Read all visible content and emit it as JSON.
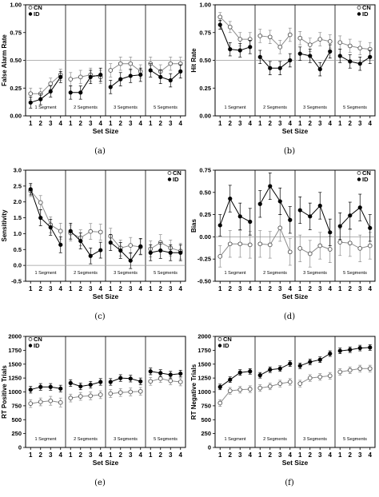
{
  "panels": [
    {
      "caption": "(a)",
      "chart_data": {
        "type": "line",
        "ylabel": "False Alarm Rate",
        "xlabel": "Set Size",
        "ylim": [
          0,
          1.0
        ],
        "yticks": [
          "0.00",
          "0.25",
          "0.50",
          "0.75",
          "1.00"
        ],
        "ytick_values": [
          0,
          0.25,
          0.5,
          0.75,
          1.0
        ],
        "ref_line": 0.5,
        "categories": [
          "1",
          "2",
          "3",
          "4",
          "1",
          "2",
          "3",
          "4",
          "1",
          "2",
          "3",
          "4",
          "1",
          "2",
          "3",
          "4"
        ],
        "segments": [
          "1 Segment",
          "2 Segments",
          "3 Segments",
          "5 Segments"
        ],
        "legend": [
          "CN",
          "ID"
        ],
        "legend_position": "top-left",
        "series": [
          {
            "name": "CN",
            "values": [
              0.2,
              0.2,
              0.29,
              0.37,
              0.33,
              0.35,
              0.37,
              0.35,
              0.41,
              0.47,
              0.47,
              0.4,
              0.47,
              0.4,
              0.47,
              0.47
            ],
            "err": [
              0.05,
              0.05,
              0.05,
              0.05,
              0.06,
              0.06,
              0.06,
              0.06,
              0.06,
              0.06,
              0.06,
              0.06,
              0.06,
              0.06,
              0.06,
              0.06
            ]
          },
          {
            "name": "ID",
            "values": [
              0.12,
              0.15,
              0.22,
              0.35,
              0.21,
              0.21,
              0.35,
              0.37,
              0.26,
              0.33,
              0.36,
              0.37,
              0.41,
              0.35,
              0.32,
              0.4
            ],
            "err": [
              0.05,
              0.05,
              0.05,
              0.05,
              0.06,
              0.06,
              0.06,
              0.06,
              0.06,
              0.06,
              0.06,
              0.06,
              0.06,
              0.06,
              0.06,
              0.06
            ]
          }
        ]
      }
    },
    {
      "caption": "(b)",
      "chart_data": {
        "type": "line",
        "ylabel": "Hit Rate",
        "xlabel": "Set Size",
        "ylim": [
          0,
          1.0
        ],
        "yticks": [
          "0.00",
          "0.25",
          "0.50",
          "0.75",
          "1.00"
        ],
        "ytick_values": [
          0,
          0.25,
          0.5,
          0.75,
          1.0
        ],
        "ref_line": 0.5,
        "categories": [
          "1",
          "2",
          "3",
          "4",
          "1",
          "2",
          "3",
          "4",
          "1",
          "2",
          "3",
          "4",
          "1",
          "2",
          "3",
          "4"
        ],
        "segments": [
          "1 Segment",
          "2 Segments",
          "3 Segments",
          "5 Segments"
        ],
        "legend": [
          "CN",
          "ID"
        ],
        "legend_position": "top-right",
        "series": [
          {
            "name": "CN",
            "values": [
              0.89,
              0.8,
              0.69,
              0.69,
              0.72,
              0.71,
              0.62,
              0.73,
              0.7,
              0.64,
              0.69,
              0.67,
              0.66,
              0.63,
              0.61,
              0.6
            ],
            "err": [
              0.04,
              0.05,
              0.06,
              0.06,
              0.06,
              0.06,
              0.06,
              0.06,
              0.06,
              0.06,
              0.06,
              0.06,
              0.06,
              0.06,
              0.06,
              0.06
            ]
          },
          {
            "name": "ID",
            "values": [
              0.82,
              0.6,
              0.59,
              0.62,
              0.53,
              0.43,
              0.43,
              0.5,
              0.56,
              0.54,
              0.42,
              0.58,
              0.54,
              0.49,
              0.47,
              0.53
            ],
            "err": [
              0.04,
              0.06,
              0.06,
              0.06,
              0.06,
              0.06,
              0.06,
              0.06,
              0.06,
              0.06,
              0.06,
              0.06,
              0.06,
              0.06,
              0.06,
              0.06
            ]
          }
        ]
      }
    },
    {
      "caption": "(c)",
      "chart_data": {
        "type": "line",
        "ylabel": "Sensitivity",
        "xlabel": "Set Size",
        "ylim": [
          -0.5,
          3.0
        ],
        "yticks": [
          "-0.5",
          "0.0",
          "0.5",
          "1.0",
          "1.5",
          "2.0",
          "2.5",
          "3.0"
        ],
        "ytick_values": [
          -0.5,
          0,
          0.5,
          1.0,
          1.5,
          2.0,
          2.5,
          3.0
        ],
        "ref_line": 0,
        "categories": [
          "1",
          "2",
          "3",
          "4",
          "1",
          "2",
          "3",
          "4",
          "1",
          "2",
          "3",
          "4",
          "1",
          "2",
          "3",
          "4"
        ],
        "segments": [
          "1 Segment",
          "2 Segments",
          "3 Segments",
          "5 Segments"
        ],
        "legend": [
          "CN",
          "ID"
        ],
        "legend_position": "top-right",
        "series": [
          {
            "name": "CN",
            "values": [
              2.35,
              1.98,
              1.28,
              1.08,
              1.02,
              0.87,
              1.07,
              1.05,
              0.92,
              0.55,
              0.63,
              0.58,
              0.52,
              0.72,
              0.55,
              0.45
            ],
            "err": [
              0.18,
              0.22,
              0.25,
              0.25,
              0.25,
              0.25,
              0.25,
              0.25,
              0.25,
              0.25,
              0.25,
              0.25,
              0.25,
              0.25,
              0.25,
              0.25
            ]
          },
          {
            "name": "ID",
            "values": [
              2.4,
              1.5,
              1.2,
              0.65,
              1.08,
              0.77,
              0.3,
              0.48,
              0.72,
              0.47,
              0.15,
              0.6,
              0.4,
              0.47,
              0.4,
              0.4
            ],
            "err": [
              0.18,
              0.25,
              0.25,
              0.25,
              0.25,
              0.25,
              0.25,
              0.25,
              0.25,
              0.25,
              0.25,
              0.25,
              0.25,
              0.25,
              0.25,
              0.25
            ]
          }
        ]
      }
    },
    {
      "caption": "(d)",
      "chart_data": {
        "type": "line",
        "ylabel": "Bias",
        "xlabel": "Set Size",
        "ylim": [
          -0.5,
          0.75
        ],
        "yticks": [
          "-0.50",
          "-0.25",
          "0.00",
          "0.25",
          "0.50",
          "0.75"
        ],
        "ytick_values": [
          -0.5,
          -0.25,
          0,
          0.25,
          0.5,
          0.75
        ],
        "ref_line": 0,
        "categories": [
          "1",
          "2",
          "3",
          "4",
          "1",
          "2",
          "3",
          "4",
          "1",
          "2",
          "3",
          "4",
          "1",
          "2",
          "3",
          "4"
        ],
        "segments": [
          "1 Segment",
          "2 Segments",
          "3 Segments",
          "5 Segments"
        ],
        "legend": [
          "CN",
          "ID"
        ],
        "legend_position": "top-right",
        "series": [
          {
            "name": "CN",
            "values": [
              -0.22,
              -0.08,
              -0.08,
              -0.09,
              -0.08,
              -0.09,
              0.1,
              -0.17,
              -0.13,
              -0.19,
              -0.1,
              -0.14,
              -0.06,
              -0.07,
              -0.13,
              -0.1
            ],
            "err": [
              0.12,
              0.15,
              0.15,
              0.15,
              0.15,
              0.15,
              0.15,
              0.15,
              0.15,
              0.15,
              0.15,
              0.15,
              0.15,
              0.15,
              0.15,
              0.15
            ]
          },
          {
            "name": "ID",
            "values": [
              0.13,
              0.43,
              0.23,
              0.17,
              0.37,
              0.57,
              0.4,
              0.19,
              0.3,
              0.23,
              0.35,
              0.05,
              0.12,
              0.24,
              0.33,
              0.1
            ],
            "err": [
              0.12,
              0.15,
              0.15,
              0.15,
              0.15,
              0.15,
              0.15,
              0.15,
              0.15,
              0.15,
              0.15,
              0.15,
              0.15,
              0.15,
              0.15,
              0.15
            ]
          }
        ]
      }
    },
    {
      "caption": "(e)",
      "chart_data": {
        "type": "line",
        "ylabel": "RT Positive Trials",
        "xlabel": "Set Size",
        "ylim": [
          0,
          2000
        ],
        "yticks": [
          "0",
          "250",
          "500",
          "750",
          "1000",
          "1250",
          "1500",
          "1750",
          "2000"
        ],
        "ytick_values": [
          0,
          250,
          500,
          750,
          1000,
          1250,
          1500,
          1750,
          2000
        ],
        "categories": [
          "1",
          "2",
          "3",
          "4",
          "1",
          "2",
          "3",
          "4",
          "1",
          "2",
          "3",
          "4",
          "1",
          "2",
          "3",
          "4"
        ],
        "segments": [
          "1 Segment",
          "2 Segments",
          "3 Segments",
          "5 Segments"
        ],
        "legend": [
          "CN",
          "ID"
        ],
        "legend_position": "top-left",
        "series": [
          {
            "name": "CN",
            "values": [
              790,
              820,
              840,
              810,
              890,
              920,
              930,
              950,
              970,
              990,
              1000,
              1010,
              1190,
              1240,
              1200,
              1180
            ],
            "err": [
              70,
              70,
              80,
              80,
              70,
              70,
              70,
              70,
              70,
              70,
              70,
              70,
              70,
              70,
              70,
              70
            ]
          },
          {
            "name": "ID",
            "values": [
              1040,
              1090,
              1090,
              1060,
              1160,
              1100,
              1130,
              1180,
              1180,
              1250,
              1240,
              1190,
              1370,
              1340,
              1310,
              1330
            ],
            "err": [
              60,
              60,
              60,
              60,
              60,
              60,
              60,
              60,
              60,
              60,
              60,
              60,
              60,
              60,
              60,
              60
            ]
          }
        ]
      }
    },
    {
      "caption": "(f)",
      "chart_data": {
        "type": "line",
        "ylabel": "RT Negative Trials",
        "xlabel": "Set Size",
        "ylim": [
          0,
          2000
        ],
        "yticks": [
          "0",
          "250",
          "500",
          "750",
          "1000",
          "1250",
          "1500",
          "1750",
          "2000"
        ],
        "ytick_values": [
          0,
          250,
          500,
          750,
          1000,
          1250,
          1500,
          1750,
          2000
        ],
        "categories": [
          "1",
          "2",
          "3",
          "4",
          "1",
          "2",
          "3",
          "4",
          "1",
          "2",
          "3",
          "4",
          "1",
          "2",
          "3",
          "4"
        ],
        "segments": [
          "1 Segment",
          "2 Segments",
          "3 Segments",
          "5 Segments"
        ],
        "legend": [
          "CN",
          "ID"
        ],
        "legend_position": "top-left",
        "series": [
          {
            "name": "CN",
            "values": [
              800,
              1020,
              1040,
              1050,
              1070,
              1100,
              1150,
              1180,
              1150,
              1250,
              1270,
              1290,
              1360,
              1390,
              1420,
              1420
            ],
            "err": [
              60,
              60,
              60,
              60,
              60,
              60,
              60,
              60,
              60,
              60,
              60,
              60,
              60,
              60,
              60,
              60
            ]
          },
          {
            "name": "ID",
            "values": [
              1090,
              1220,
              1350,
              1370,
              1300,
              1400,
              1420,
              1510,
              1470,
              1540,
              1580,
              1690,
              1740,
              1760,
              1790,
              1800
            ],
            "err": [
              50,
              50,
              50,
              50,
              50,
              50,
              50,
              50,
              50,
              50,
              50,
              50,
              50,
              50,
              50,
              50
            ]
          }
        ]
      }
    }
  ]
}
